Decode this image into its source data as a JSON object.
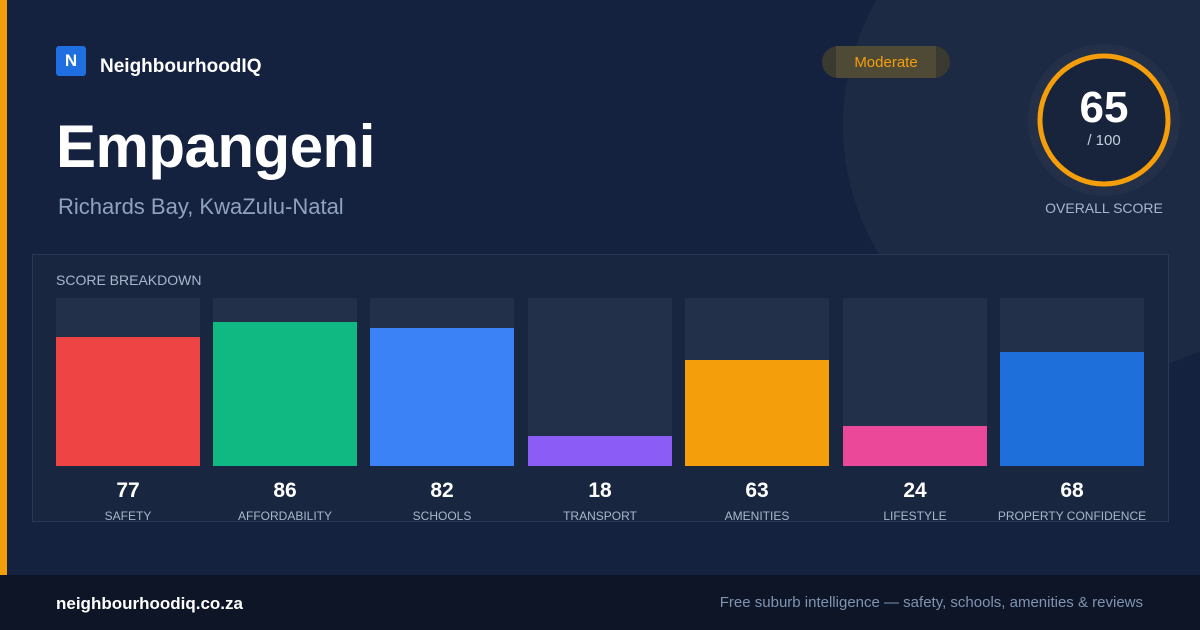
{
  "brand": {
    "logo_letter": "N",
    "name": "NeighbourhoodIQ"
  },
  "badge": {
    "label": "Moderate",
    "color": "#f59e0b"
  },
  "header": {
    "title": "Empangeni",
    "subtitle": "Richards Bay, KwaZulu-Natal"
  },
  "overall": {
    "value": 65,
    "value_text": "65",
    "max_text": "/ 100",
    "caption": "OVERALL SCORE",
    "ring_color": "#f59e0b"
  },
  "breakdown": {
    "label": "SCORE BREAKDOWN",
    "scale_max": 100,
    "items": [
      {
        "label": "SAFETY",
        "value": 77,
        "value_text": "77",
        "color": "#ef4444"
      },
      {
        "label": "AFFORDABILITY",
        "value": 86,
        "value_text": "86",
        "color": "#10b981"
      },
      {
        "label": "SCHOOLS",
        "value": 82,
        "value_text": "82",
        "color": "#3b82f6"
      },
      {
        "label": "TRANSPORT",
        "value": 18,
        "value_text": "18",
        "color": "#8b5cf6"
      },
      {
        "label": "AMENITIES",
        "value": 63,
        "value_text": "63",
        "color": "#f59e0b"
      },
      {
        "label": "LIFESTYLE",
        "value": 24,
        "value_text": "24",
        "color": "#ec4899"
      },
      {
        "label": "PROPERTY CONFIDENCE",
        "value": 68,
        "value_text": "68",
        "color": "#1e6fd9"
      }
    ]
  },
  "footer": {
    "url": "neighbourhoodiq.co.za",
    "tagline": "Free suburb intelligence — safety, schools, amenities & reviews"
  }
}
